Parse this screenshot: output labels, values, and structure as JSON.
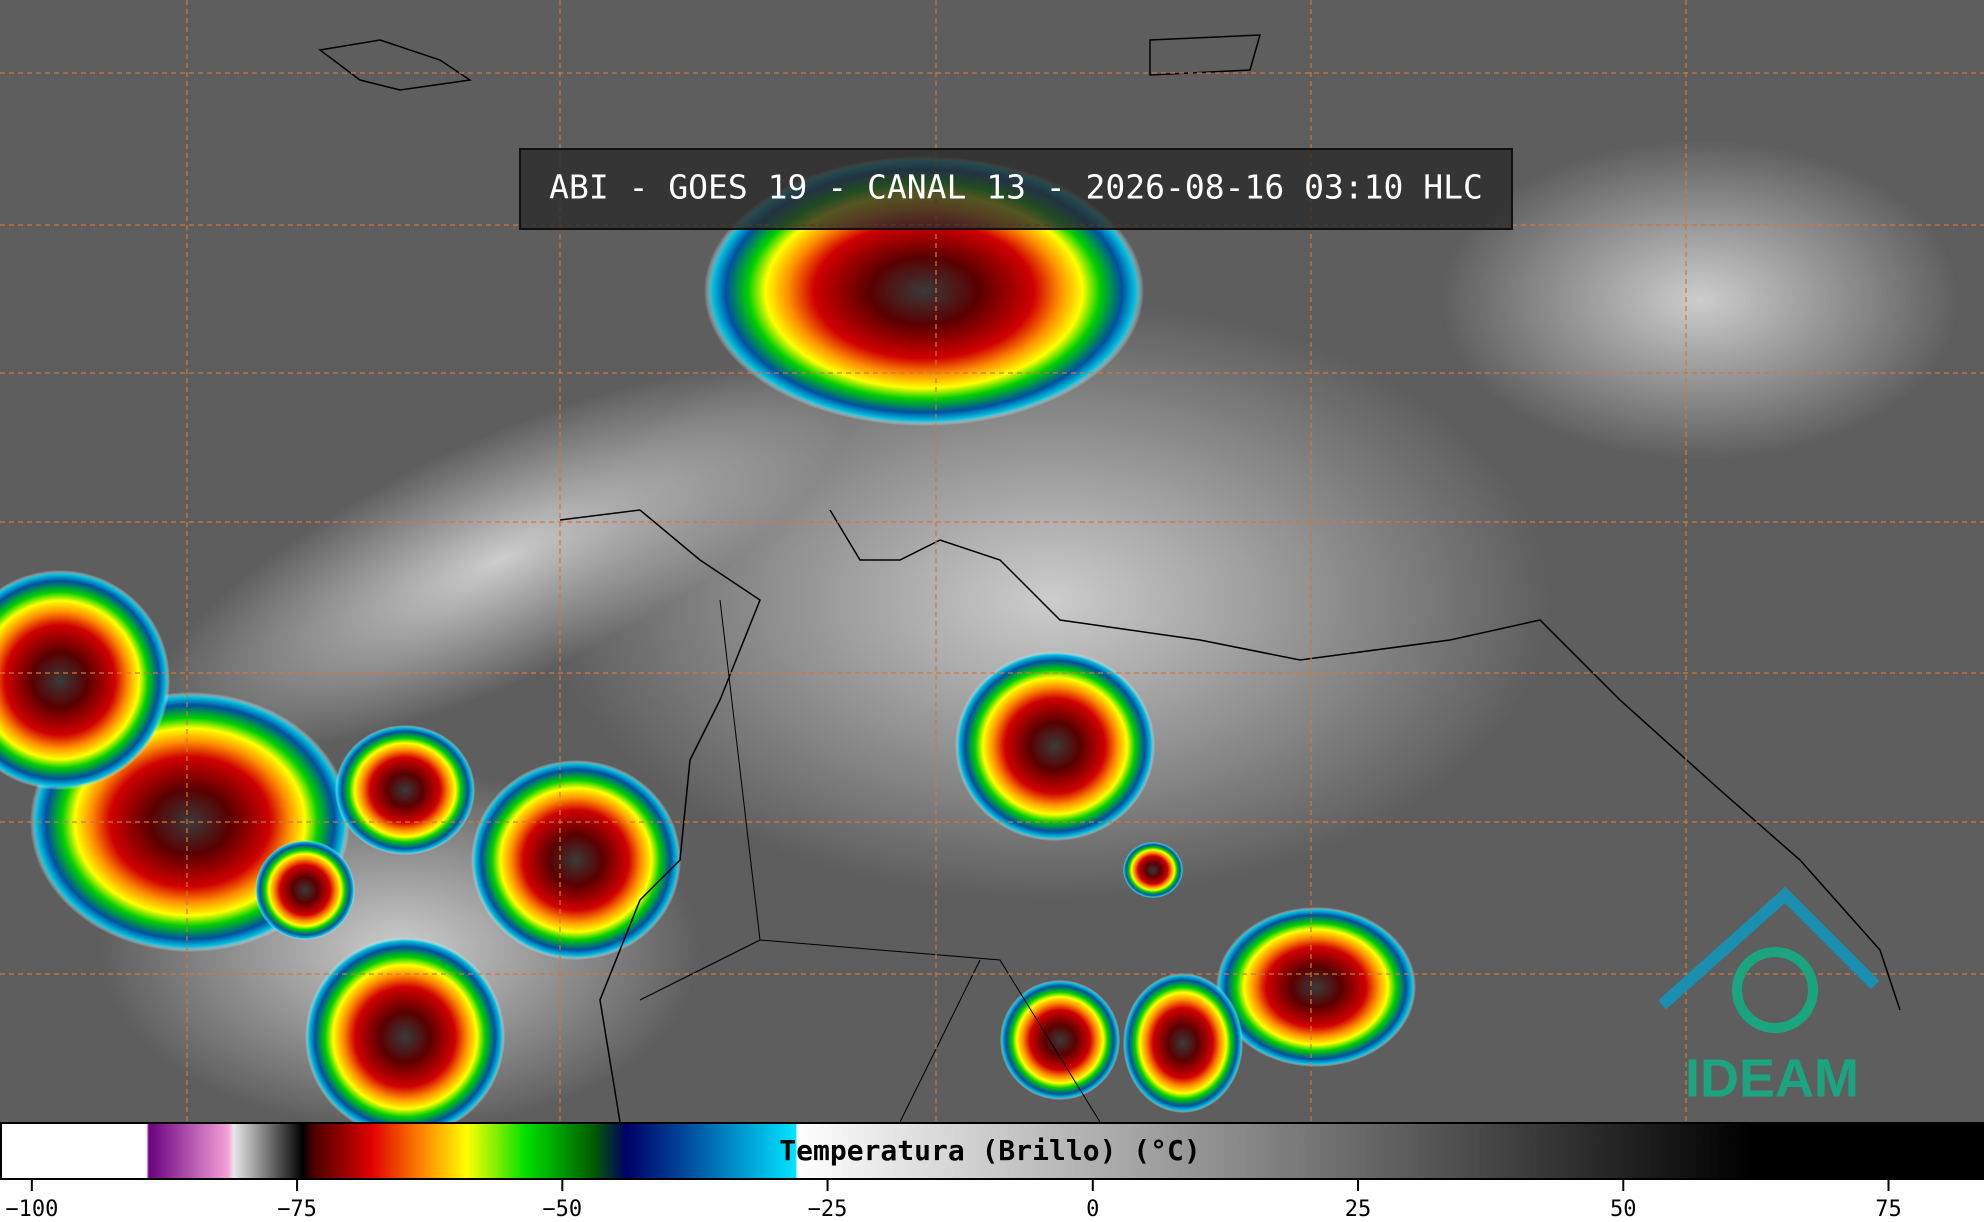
{
  "title": "ABI - GOES 19 - CANAL 13 - 2026-08-16 03:10 HLC",
  "logo": "IDEAM",
  "colorbar": {
    "label": "Temperatura (Brillo) (°C)",
    "xlim": [
      -103,
      84
    ],
    "xticks": [
      {
        "value": -100,
        "label": "−100"
      },
      {
        "value": -75,
        "label": "−75"
      },
      {
        "value": -50,
        "label": "−50"
      },
      {
        "value": -25,
        "label": "−25"
      },
      0,
      25,
      50,
      75
    ],
    "colormap": [
      {
        "value": -103,
        "color": "#ffffff"
      },
      {
        "value": -89.2,
        "color": "#ffffff"
      },
      {
        "value": -89,
        "color": "#6a0080"
      },
      {
        "value": -81.5,
        "color": "#f5a0d8"
      },
      {
        "value": -81,
        "color": "#e8e8e8"
      },
      {
        "value": -74.5,
        "color": "#000000"
      },
      {
        "value": -73.5,
        "color": "#4a0000"
      },
      {
        "value": -68,
        "color": "#e00000"
      },
      {
        "value": -63,
        "color": "#ff8c00"
      },
      {
        "value": -59,
        "color": "#ffff00"
      },
      {
        "value": -53.5,
        "color": "#00e000"
      },
      {
        "value": -47,
        "color": "#005a00"
      },
      {
        "value": -44,
        "color": "#000066"
      },
      {
        "value": -38,
        "color": "#0050a0"
      },
      {
        "value": -28,
        "color": "#00e5ff"
      },
      {
        "value": -27.9,
        "color": "#ffffff"
      },
      {
        "value": 62,
        "color": "#000000"
      },
      {
        "value": 84,
        "color": "#000000"
      }
    ]
  }
}
